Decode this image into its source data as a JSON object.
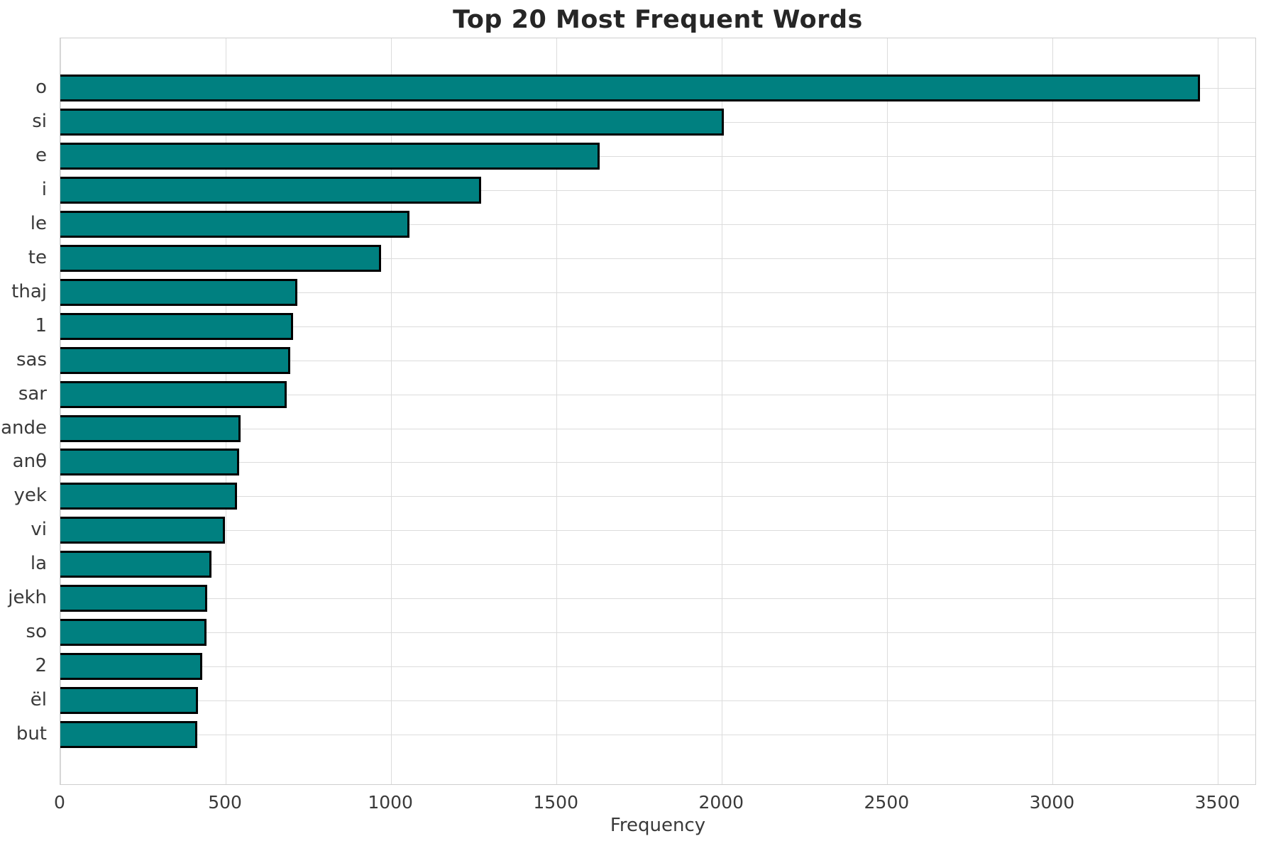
{
  "chart_data": {
    "type": "bar",
    "orientation": "horizontal",
    "title": "Top 20 Most Frequent Words",
    "xlabel": "Frequency",
    "ylabel": "",
    "categories": [
      "o",
      "si",
      "e",
      "i",
      "le",
      "te",
      "thaj",
      "1",
      "sas",
      "sar",
      "ande",
      "anθ",
      "yek",
      "vi",
      "la",
      "jekh",
      "so",
      "2",
      "ël",
      "but"
    ],
    "values": [
      3445,
      2005,
      1630,
      1272,
      1055,
      970,
      717,
      704,
      696,
      684,
      545,
      541,
      534,
      497,
      456,
      444,
      441,
      429,
      417,
      413
    ],
    "x_ticks": [
      0,
      500,
      1000,
      1500,
      2000,
      2500,
      3000,
      3500
    ],
    "xlim": [
      0,
      3617
    ],
    "grid": true,
    "legend": "none",
    "bar_color": "#008080",
    "bar_edge_color": "#000000",
    "grid_color": "#dcdcdc",
    "background_color": "#ffffff",
    "title_color": "#262626",
    "tick_label_color": "#3a3a3a"
  }
}
